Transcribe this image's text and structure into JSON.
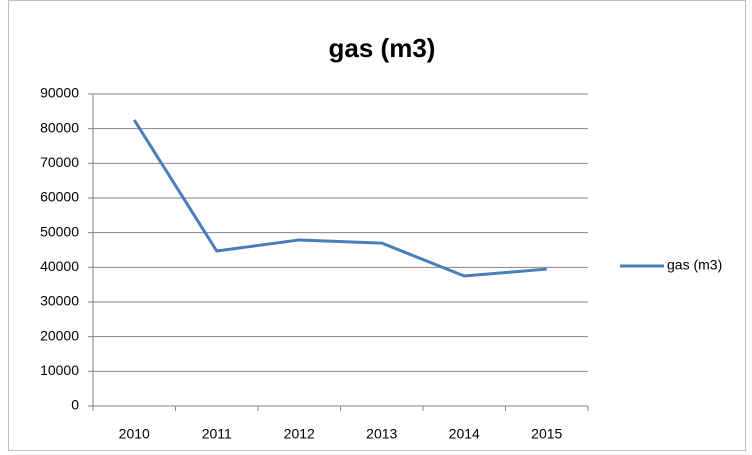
{
  "chart_data": {
    "type": "line",
    "title": "gas (m3)",
    "categories": [
      "2010",
      "2011",
      "2012",
      "2013",
      "2014",
      "2015"
    ],
    "series": [
      {
        "name": "gas (m3)",
        "color": "#4a7ebb",
        "values": [
          82500,
          44700,
          47900,
          47000,
          37500,
          39500
        ]
      }
    ],
    "ylim": [
      0,
      90000
    ],
    "yticks": [
      0,
      10000,
      20000,
      30000,
      40000,
      50000,
      60000,
      70000,
      80000,
      90000
    ],
    "grid": true,
    "legend": "right"
  }
}
